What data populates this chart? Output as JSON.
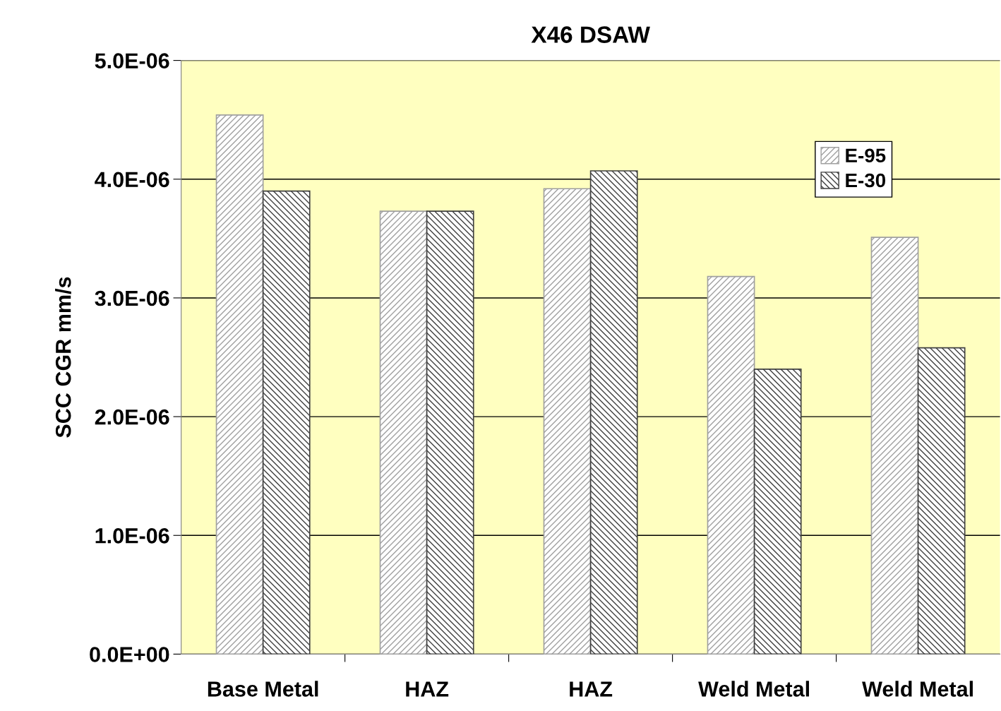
{
  "chart_data": {
    "type": "bar",
    "title": "X46 DSAW",
    "ylabel": "SCC CGR mm/s",
    "categories": [
      "Base Metal",
      "HAZ",
      "HAZ",
      "Weld Metal",
      "Weld Metal"
    ],
    "series": [
      {
        "name": "E-95",
        "color": "#a0a0a0",
        "values": [
          4.54e-06,
          3.73e-06,
          3.92e-06,
          3.18e-06,
          3.51e-06
        ]
      },
      {
        "name": "E-30",
        "color": "#404040",
        "values": [
          3.9e-06,
          3.73e-06,
          4.07e-06,
          2.4e-06,
          2.58e-06
        ]
      }
    ],
    "ylim": [
      0,
      5e-06
    ],
    "yticks": [
      {
        "value": 0,
        "label": "0.0E+00"
      },
      {
        "value": 1e-06,
        "label": "1.0E-06"
      },
      {
        "value": 2e-06,
        "label": "2.0E-06"
      },
      {
        "value": 3e-06,
        "label": "3.0E-06"
      },
      {
        "value": 4e-06,
        "label": "4.0E-06"
      },
      {
        "value": 5e-06,
        "label": "5.0E-06"
      }
    ],
    "grid": "y",
    "legend": "top right"
  }
}
